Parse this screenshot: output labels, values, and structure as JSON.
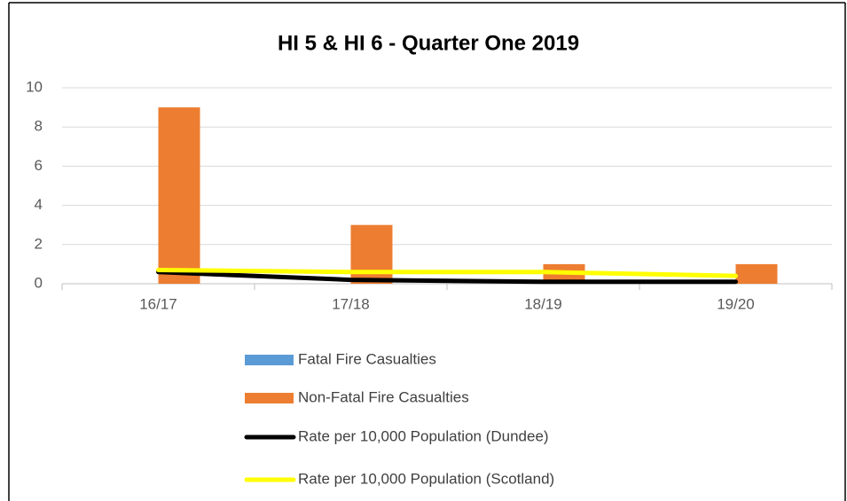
{
  "chart_data": {
    "type": "bar",
    "title": "HI 5 & HI 6 - Quarter One 2019",
    "categories": [
      "16/17",
      "17/18",
      "18/19",
      "19/20"
    ],
    "series": [
      {
        "name": "Fatal Fire Casualties",
        "type": "bar",
        "color": "#5b9bd5",
        "values": [
          0,
          0,
          0,
          0
        ]
      },
      {
        "name": "Non-Fatal Fire Casualties",
        "type": "bar",
        "color": "#ed7d31",
        "values": [
          9,
          3,
          1,
          1
        ]
      },
      {
        "name": "Rate per 10,000 Population (Dundee)",
        "type": "line",
        "color": "#000000",
        "values": [
          0.6,
          0.2,
          0.1,
          0.1
        ]
      },
      {
        "name": "Rate per 10,000 Population (Scotland)",
        "type": "line",
        "color": "#ffff00",
        "values": [
          0.7,
          0.6,
          0.6,
          0.4
        ]
      }
    ],
    "ylim": [
      0,
      10
    ],
    "yticks": [
      0,
      2,
      4,
      6,
      8,
      10
    ],
    "grid": true,
    "legend": "bottom"
  }
}
